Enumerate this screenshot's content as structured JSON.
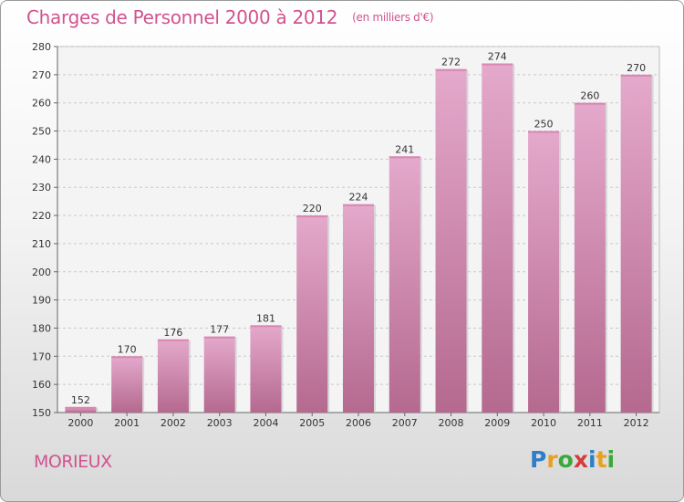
{
  "chart_data": {
    "type": "bar",
    "title": "Charges de Personnel 2000 à 2012",
    "subtitle": "(en milliers d'€)",
    "categories": [
      "2000",
      "2001",
      "2002",
      "2003",
      "2004",
      "2005",
      "2006",
      "2007",
      "2008",
      "2009",
      "2010",
      "2011",
      "2012"
    ],
    "values": [
      152,
      170,
      176,
      177,
      181,
      220,
      224,
      241,
      272,
      274,
      250,
      260,
      270
    ],
    "ylim": [
      150,
      280
    ],
    "yticks": [
      150,
      160,
      170,
      180,
      190,
      200,
      210,
      220,
      230,
      240,
      250,
      260,
      270,
      280
    ],
    "grid": true,
    "bar_color": "#c97aa6"
  },
  "commune": "MORIEUX",
  "logo": {
    "letters": [
      "P",
      "r",
      "o",
      "x",
      "i",
      "t",
      "i"
    ],
    "colors": [
      "#2f7fc7",
      "#e8a020",
      "#3aa83a",
      "#d63a3a",
      "#2f7fc7",
      "#e8a020",
      "#3aa83a"
    ]
  }
}
